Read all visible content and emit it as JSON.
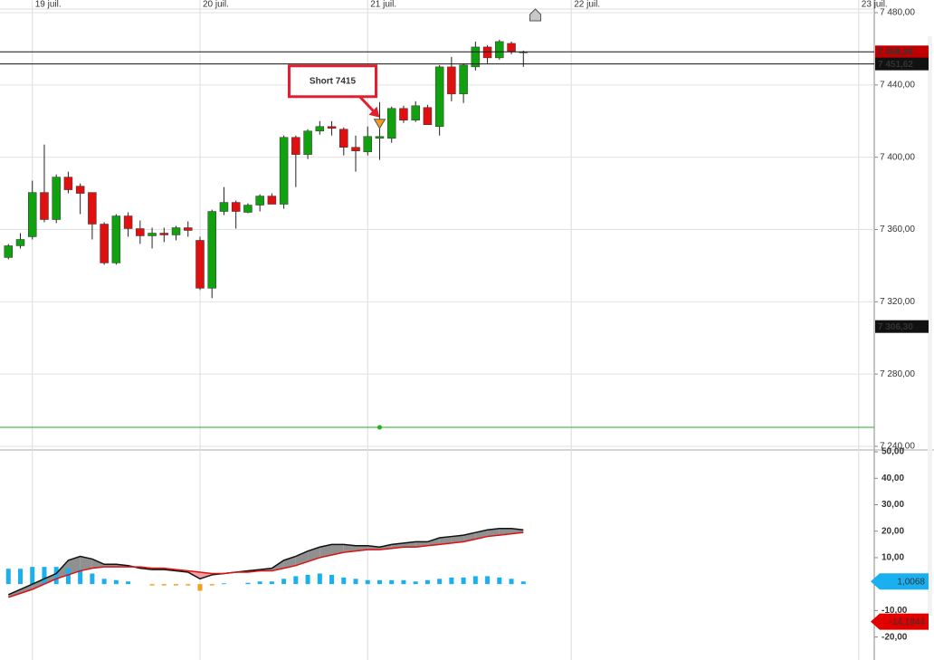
{
  "chart_data": [
    {
      "type": "candlestick",
      "x": [
        -2,
        -1,
        0,
        1,
        2,
        3,
        4,
        5,
        6,
        7,
        8,
        9,
        10,
        11,
        12,
        13,
        14,
        15,
        16,
        17,
        18,
        19,
        20,
        21,
        22,
        23,
        24,
        25,
        26,
        27,
        28,
        29,
        30,
        31,
        32,
        33,
        34,
        35,
        36,
        37,
        38,
        39,
        40,
        41
      ],
      "open": [
        7344.5,
        7351,
        7356,
        7380.5,
        7365.5,
        7389,
        7384,
        7380.5,
        7363,
        7341.5,
        7367.5,
        7360.5,
        7356.5,
        7358,
        7357,
        7361,
        7354,
        7327.5,
        7370,
        7375,
        7369.5,
        7373.5,
        7378.5,
        7374,
        7411,
        7401.5,
        7414.5,
        7417,
        7415.5,
        7405.5,
        7403,
        7410.5,
        7410.5,
        7427,
        7420.5,
        7427.5,
        7417,
        7450,
        7435,
        7450,
        7461,
        7455,
        7463,
        7458
      ],
      "high": [
        7352,
        7358,
        7387,
        7407,
        7390.5,
        7392,
        7385.5,
        7380.5,
        7364,
        7368.5,
        7369.5,
        7365,
        7361,
        7361,
        7362,
        7364.5,
        7356,
        7371,
        7383.5,
        7376,
        7374.5,
        7379.5,
        7380,
        7412,
        7412,
        7415.5,
        7420,
        7420,
        7416.5,
        7412,
        7417,
        7430.5,
        7428,
        7428.5,
        7431,
        7429,
        7451,
        7455.5,
        7452,
        7464,
        7462,
        7465,
        7464,
        7459
      ],
      "low": [
        7343.5,
        7349.5,
        7354.5,
        7364,
        7363.5,
        7380,
        7368.5,
        7354.5,
        7340.5,
        7340.5,
        7356,
        7352,
        7349.5,
        7353,
        7354,
        7356,
        7326.5,
        7322,
        7368,
        7360.5,
        7369,
        7370,
        7374,
        7371.5,
        7383.5,
        7399,
        7412.5,
        7412,
        7401,
        7392,
        7401,
        7398.5,
        7408,
        7419,
        7419.5,
        7418,
        7412,
        7431,
        7430,
        7448,
        7452,
        7454,
        7457,
        7450
      ],
      "close": [
        7351,
        7354.5,
        7380.5,
        7365.5,
        7389,
        7382,
        7380,
        7363,
        7341.5,
        7367.5,
        7360.5,
        7356.5,
        7358,
        7357,
        7361,
        7359.5,
        7327.5,
        7370,
        7375,
        7370,
        7373.5,
        7378.5,
        7374,
        7411,
        7401.5,
        7414.5,
        7417,
        7416,
        7405.5,
        7403.5,
        7411.5,
        7411.5,
        7427,
        7420.5,
        7428.5,
        7418,
        7450,
        7435,
        7451,
        7461,
        7455,
        7464,
        7458.5,
        7458.3
      ],
      "up_color": "#10a010",
      "down_color": "#e01010",
      "xlim": [
        -2.7,
        70.3
      ],
      "xticks": [
        {
          "value": 0,
          "label": "19 juil."
        },
        {
          "value": 14,
          "label": "20 juil."
        },
        {
          "value": 28,
          "label": "21 juil."
        },
        {
          "value": 45,
          "label": "22 juil."
        },
        {
          "value": 69,
          "label": "23 juil."
        }
      ],
      "ylim": [
        7238,
        7482
      ],
      "yticks": [
        {
          "value": 7480,
          "label": "7 480,00"
        },
        {
          "value": 7440,
          "label": "7 440,00"
        },
        {
          "value": 7400,
          "label": "7 400,00"
        },
        {
          "value": 7360,
          "label": "7 360,00"
        },
        {
          "value": 7320,
          "label": "7 320,00"
        },
        {
          "value": 7280,
          "label": "7 280,00"
        },
        {
          "value": 7240,
          "label": "7 240,00"
        }
      ],
      "grid": true,
      "price_labels": [
        {
          "value": 7458.3,
          "label": "7 458,30",
          "color": "#c00000",
          "line": true
        },
        {
          "value": 7451.62,
          "label": "7 451,62",
          "color": "#111111",
          "line": true
        },
        {
          "value": 7306.3,
          "label": "7 306,30",
          "color": "#111111",
          "line": false
        }
      ],
      "hlines": [
        {
          "value": 7250.5,
          "color": "#22b022",
          "marker_x": 29
        }
      ],
      "markers": [
        {
          "x": 29,
          "y": 7418.5,
          "shape": "triangle-down",
          "color": "#f0a020"
        },
        {
          "x": 42,
          "y": 7478.5,
          "shape": "arrow-up",
          "color": "#c8c8c8"
        }
      ],
      "annotations": [
        {
          "text": "Short 7415",
          "x": 29,
          "y": 7422,
          "color": "#e02030"
        }
      ]
    },
    {
      "type": "macd",
      "ylim": [
        -28,
        50.7
      ],
      "yticks": [
        {
          "value": 50,
          "label": "50,00"
        },
        {
          "value": 40,
          "label": "40,00"
        },
        {
          "value": 30,
          "label": "30,00"
        },
        {
          "value": 20,
          "label": "20,00"
        },
        {
          "value": 10,
          "label": "10,00"
        },
        {
          "value": -10,
          "label": "-10,00"
        },
        {
          "value": -20,
          "label": "-20,00"
        }
      ],
      "series": [
        {
          "style": "bar",
          "color": "#1ab0f0",
          "negative_color": "#f0a020",
          "values": [
            5.8,
            5.8,
            6.5,
            6.5,
            6.5,
            6,
            5.5,
            4,
            2,
            1.5,
            1,
            0,
            -0.5,
            -0.5,
            -0.5,
            -0.5,
            -2.5,
            -0.5,
            0.3,
            0,
            0.5,
            1,
            1,
            2,
            3,
            3.5,
            4,
            3.5,
            2.5,
            2,
            1.5,
            1.5,
            1.5,
            1.5,
            1,
            1.5,
            2,
            2.5,
            2.5,
            3,
            3,
            2.5,
            2,
            1
          ]
        },
        {
          "style": "line",
          "color": "#111111",
          "values": [
            -4,
            -2,
            0,
            2,
            4,
            9,
            10.5,
            9.5,
            7.5,
            7.5,
            7,
            6,
            5.5,
            5.5,
            5,
            4.5,
            2,
            3.5,
            4,
            4.5,
            5,
            5.5,
            6,
            9,
            10.5,
            12.5,
            14,
            15,
            15,
            14.5,
            14.5,
            14,
            15,
            15.5,
            16,
            16,
            17.5,
            18,
            18.5,
            19.5,
            20.5,
            21,
            21,
            20.5
          ]
        },
        {
          "style": "line",
          "color": "#e01010",
          "values": [
            -5,
            -3.5,
            -2,
            0,
            2,
            3.5,
            5,
            6,
            6.5,
            6.5,
            6.5,
            6.5,
            6,
            6,
            5.5,
            5,
            4.5,
            4,
            4,
            4.5,
            4.5,
            5,
            5,
            6,
            7,
            8.5,
            10,
            11,
            12,
            12.5,
            13,
            13,
            13.5,
            14,
            14,
            14.5,
            15,
            15.5,
            16,
            17,
            18,
            18.5,
            19,
            19.5
          ]
        }
      ],
      "fill_above_color": "#909090",
      "fill_below_color": "#f4a0a0",
      "price_labels": [
        {
          "value": 1.0068,
          "label": "1,0068",
          "color": "#1ab0f0",
          "text_color": "#111111"
        },
        {
          "value": -14.1844,
          "label": "-14,1844",
          "color": "#e00000",
          "text_color": "#ffffff"
        }
      ]
    }
  ]
}
